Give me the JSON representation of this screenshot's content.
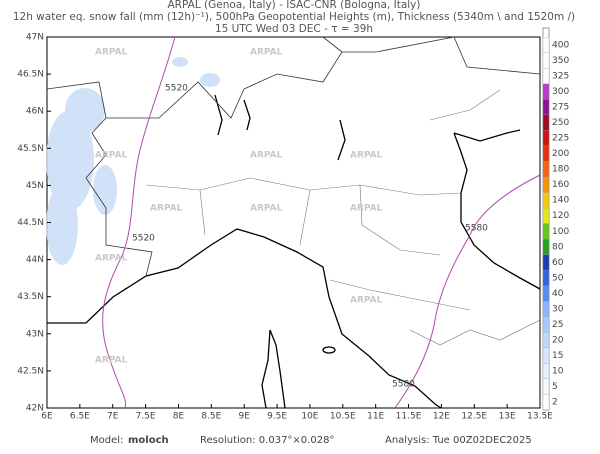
{
  "header": {
    "line1": "ARPAL (Genoa, Italy)  -  ISAC-CNR (Bologna, Italy)",
    "line2": "12h water eq. snow fall (mm (12h)⁻¹), 500hPa Geopotential Heights (m), Thickness (5340m \\ and 1520m /)",
    "line3": "15 UTC Wed 03 DEC  -  τ = 39h"
  },
  "map": {
    "lon_ticks": [
      {
        "value": 6,
        "label": "6E"
      },
      {
        "value": 6.5,
        "label": "6.5E"
      },
      {
        "value": 7,
        "label": "7E"
      },
      {
        "value": 7.5,
        "label": "7.5E"
      },
      {
        "value": 8,
        "label": "8E"
      },
      {
        "value": 8.5,
        "label": "8.5E"
      },
      {
        "value": 9,
        "label": "9E"
      },
      {
        "value": 9.5,
        "label": "9.5E"
      },
      {
        "value": 10,
        "label": "10E"
      },
      {
        "value": 10.5,
        "label": "10.5E"
      },
      {
        "value": 11,
        "label": "11E"
      },
      {
        "value": 11.5,
        "label": "11.5E"
      },
      {
        "value": 12,
        "label": "12E"
      },
      {
        "value": 12.5,
        "label": "12.5E"
      },
      {
        "value": 13,
        "label": "13E"
      },
      {
        "value": 13.5,
        "label": "13.5E"
      }
    ],
    "lat_ticks": [
      {
        "value": 42,
        "label": "42N"
      },
      {
        "value": 42.5,
        "label": "42.5N"
      },
      {
        "value": 43,
        "label": "43N"
      },
      {
        "value": 43.5,
        "label": "43.5N"
      },
      {
        "value": 44,
        "label": "44N"
      },
      {
        "value": 44.5,
        "label": "44.5N"
      },
      {
        "value": 45,
        "label": "45N"
      },
      {
        "value": 45.5,
        "label": "45.5N"
      },
      {
        "value": 46,
        "label": "46N"
      },
      {
        "value": 46.5,
        "label": "46.5N"
      },
      {
        "value": 47,
        "label": "47N"
      }
    ],
    "contour_labels": [
      "5520",
      "5520",
      "5580",
      "5580"
    ],
    "watermark": "ARPAL"
  },
  "colorbar": {
    "levels": [
      2,
      5,
      10,
      15,
      20,
      25,
      30,
      40,
      50,
      60,
      80,
      100,
      120,
      140,
      160,
      180,
      200,
      225,
      250,
      275,
      300,
      325,
      350,
      400
    ],
    "colors": [
      "#ffffff",
      "#f4f8ff",
      "#e6efff",
      "#d6e6ff",
      "#c0d8ff",
      "#a8c8ff",
      "#8cb4ff",
      "#5a8cf0",
      "#3264dc",
      "#1e3cb4",
      "#28a028",
      "#64c81e",
      "#e6e61e",
      "#f0c814",
      "#f09614",
      "#f06414",
      "#e63214",
      "#c81414",
      "#a00a28",
      "#8c148c",
      "#b43cc8",
      "#ffffff",
      "#ffffff",
      "#ffffff"
    ]
  },
  "footer": {
    "model_label": "Model:",
    "model": "moloch",
    "resolution": "Resolution: 0.037°×0.028°",
    "analysis": "Analysis: Tue 00Z02DEC2025"
  }
}
